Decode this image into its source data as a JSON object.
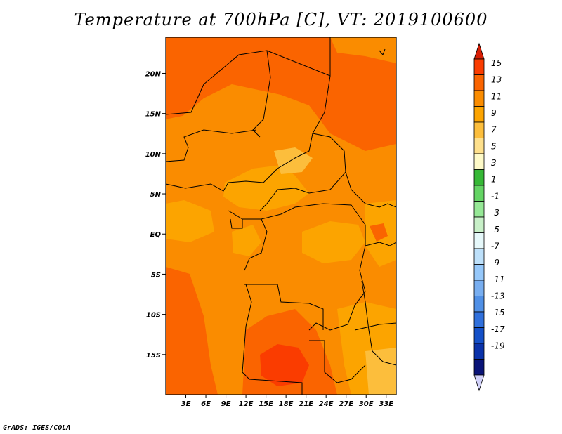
{
  "title": "Temperature at 700hPa [C], VT: 2019100600",
  "credit": "GrADS: IGES/COLA",
  "map": {
    "lat_labels": [
      "20N",
      "15N",
      "10N",
      "5N",
      "EQ",
      "5S",
      "10S",
      "15S"
    ],
    "lat_values": [
      20,
      15,
      10,
      5,
      0,
      -5,
      -10,
      -15
    ],
    "lon_labels": [
      "3E",
      "6E",
      "9E",
      "12E",
      "15E",
      "18E",
      "21E",
      "24E",
      "27E",
      "30E",
      "33E"
    ],
    "lon_values": [
      3,
      6,
      9,
      12,
      15,
      18,
      21,
      24,
      27,
      30,
      33
    ],
    "lat_range": [
      -20,
      24.5
    ],
    "lon_range": [
      0,
      34.5
    ]
  },
  "colorbar": {
    "labels": [
      "15",
      "13",
      "11",
      "9",
      "7",
      "5",
      "3",
      "1",
      "-1",
      "-3",
      "-5",
      "-7",
      "-9",
      "-11",
      "-13",
      "-15",
      "-17",
      "-19"
    ],
    "colors": [
      "#d81e05",
      "#fa3c00",
      "#fa6400",
      "#fa8c00",
      "#fca400",
      "#fcbe3c",
      "#fee08c",
      "#fefac8",
      "#36b836",
      "#64d464",
      "#96e896",
      "#c8f0c8",
      "#e6f8fa",
      "#bde0fa",
      "#96c8fa",
      "#78aef0",
      "#5090e6",
      "#3070dc",
      "#1450c8",
      "#0a32aa",
      "#0a1478",
      "#d2d2fa"
    ]
  }
}
